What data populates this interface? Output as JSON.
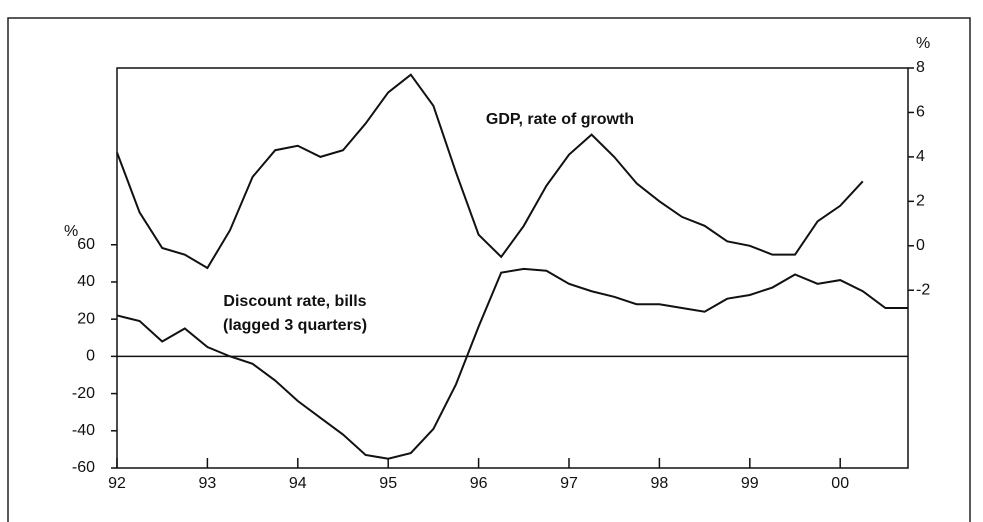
{
  "chart_data": {
    "type": "line",
    "y_axis_label": "%",
    "y2_axis_label": "%",
    "x": [
      1992,
      1992.25,
      1992.5,
      1992.75,
      1993,
      1993.25,
      1993.5,
      1993.75,
      1994,
      1994.25,
      1994.5,
      1994.75,
      1995,
      1995.25,
      1995.5,
      1995.75,
      1996,
      1996.25,
      1996.5,
      1996.75,
      1997,
      1997.25,
      1997.5,
      1997.75,
      1998,
      1998.25,
      1998.5,
      1998.75,
      1999,
      1999.25,
      1999.5,
      1999.75,
      2000,
      2000.25,
      2000.5,
      2000.75
    ],
    "series": [
      {
        "name": "GDP, rate of growth",
        "color": "#111111",
        "axis": "y2",
        "values": [
          4.2,
          1.5,
          -0.1,
          -0.4,
          -1.0,
          0.7,
          3.1,
          4.3,
          4.5,
          4.0,
          4.3,
          5.5,
          6.9,
          7.7,
          6.3,
          3.3,
          0.5,
          -0.5,
          0.9,
          2.7,
          4.1,
          5.0,
          4.0,
          2.8,
          2.0,
          1.3,
          0.9,
          0.2,
          0.0,
          -0.4,
          -0.4,
          1.1,
          1.8,
          2.9,
          null,
          null
        ]
      },
      {
        "name": "Discount rate, bills",
        "color": "#111111",
        "values": [
          22,
          19,
          8,
          15,
          5,
          0,
          -4,
          -13,
          -24,
          -33,
          -42,
          -53,
          -55,
          -52,
          -39,
          -15,
          16,
          45,
          47,
          46,
          39,
          35,
          32,
          28,
          28,
          26,
          24,
          31,
          33,
          37,
          44,
          39,
          41,
          35,
          26,
          26
        ]
      }
    ],
    "annotations": [
      "(lagged 3 quarters)"
    ],
    "xlim": [
      1992,
      2000.75
    ],
    "xticks": [
      {
        "value": 1992,
        "label": "92"
      },
      {
        "value": 1993,
        "label": "93"
      },
      {
        "value": 1994,
        "label": "94"
      },
      {
        "value": 1995,
        "label": "95"
      },
      {
        "value": 1996,
        "label": "96"
      },
      {
        "value": 1997,
        "label": "97"
      },
      {
        "value": 1998,
        "label": "98"
      },
      {
        "value": 1999,
        "label": "99"
      },
      {
        "value": 2000,
        "label": "00"
      }
    ],
    "ylim": [
      -60,
      155
    ],
    "yticks": [
      -60,
      -40,
      -20,
      0,
      20,
      40,
      60
    ],
    "y2lim": [
      -10,
      8
    ],
    "y2ticks": [
      -2,
      0,
      2,
      4,
      6,
      8
    ],
    "hline": 0
  }
}
